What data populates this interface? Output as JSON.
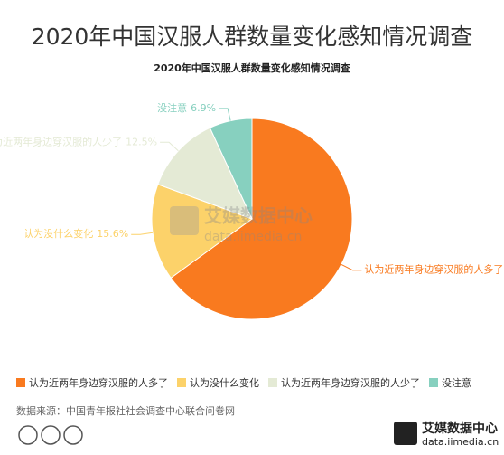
{
  "chart_data": {
    "type": "pie",
    "title": "2020年中国汉服人群数量变化感知情况调查",
    "subtitle": "2020年中国汉服人群数量变化感知情况调查",
    "categories": [
      "认为近两年身边穿汉服的人多了",
      "认为没什么变化",
      "认为近两年身边穿汉服的人少了",
      "没注意"
    ],
    "values": [
      65.0,
      15.6,
      12.5,
      6.9
    ],
    "value_labels": [
      null,
      "15.6%",
      "12.5%",
      "6.9%"
    ],
    "colors": [
      "#f97a1f",
      "#fcd26a",
      "#e4ead5",
      "#87d0bf"
    ],
    "source": "数据来源：中国青年报社社会调查中心联合问卷网",
    "brand": {
      "name": "艾媒数据中心",
      "url": "data.iimedia.cn"
    }
  }
}
